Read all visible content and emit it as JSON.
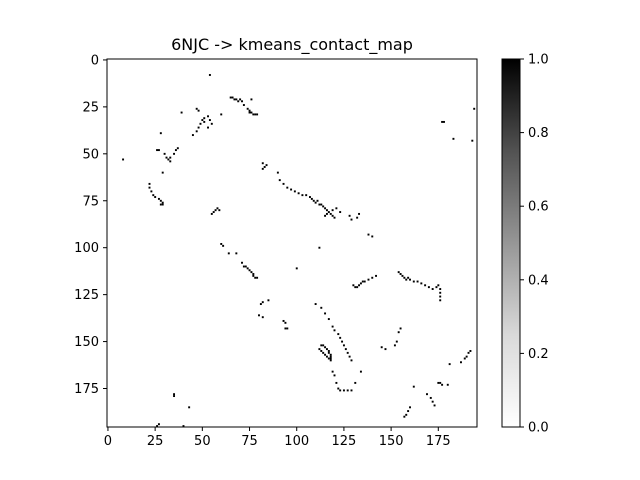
{
  "chart_data": {
    "type": "heatmap",
    "title": "6NJC -> kmeans_contact_map",
    "xlabel": "",
    "ylabel": "",
    "size": 196,
    "xlim": [
      0,
      196
    ],
    "ylim": [
      196,
      0
    ],
    "x_ticks": [
      0,
      25,
      50,
      75,
      100,
      125,
      150,
      175
    ],
    "y_ticks": [
      0,
      25,
      50,
      75,
      100,
      125,
      150,
      175
    ],
    "colorbar": {
      "min": 0.0,
      "max": 1.0,
      "ticks": [
        "0.0",
        "0.2",
        "0.4",
        "0.6",
        "0.8",
        "1.0"
      ],
      "colormap": "Greys"
    },
    "grid": false,
    "contacts": [
      [
        8,
        53
      ],
      [
        22,
        66
      ],
      [
        22,
        68
      ],
      [
        23,
        70
      ],
      [
        24,
        72
      ],
      [
        25,
        73
      ],
      [
        27,
        74
      ],
      [
        28,
        75
      ],
      [
        29,
        76
      ],
      [
        28,
        77
      ],
      [
        29,
        77
      ],
      [
        26,
        48
      ],
      [
        27,
        48
      ],
      [
        30,
        50
      ],
      [
        31,
        52
      ],
      [
        32,
        53
      ],
      [
        33,
        52
      ],
      [
        33,
        54
      ],
      [
        35,
        50
      ],
      [
        36,
        48
      ],
      [
        37,
        47
      ],
      [
        28,
        39
      ],
      [
        29,
        60
      ],
      [
        39,
        28
      ],
      [
        45,
        40
      ],
      [
        47,
        38
      ],
      [
        48,
        36
      ],
      [
        49,
        34
      ],
      [
        50,
        32
      ],
      [
        51,
        31
      ],
      [
        51,
        33
      ],
      [
        53,
        30
      ],
      [
        54,
        32
      ],
      [
        55,
        34
      ],
      [
        53,
        36
      ],
      [
        47,
        26
      ],
      [
        48,
        27
      ],
      [
        54,
        8
      ],
      [
        60,
        29
      ],
      [
        65,
        20
      ],
      [
        66,
        20
      ],
      [
        67,
        21
      ],
      [
        68,
        21
      ],
      [
        69,
        22
      ],
      [
        70,
        21
      ],
      [
        71,
        22
      ],
      [
        72,
        24
      ],
      [
        74,
        26
      ],
      [
        75,
        27
      ],
      [
        75,
        28
      ],
      [
        76,
        28
      ],
      [
        77,
        29
      ],
      [
        78,
        29
      ],
      [
        79,
        29
      ],
      [
        76,
        21
      ],
      [
        55,
        82
      ],
      [
        56,
        81
      ],
      [
        57,
        80
      ],
      [
        58,
        79
      ],
      [
        59,
        80
      ],
      [
        82,
        58
      ],
      [
        83,
        57
      ],
      [
        84,
        56
      ],
      [
        82,
        55
      ],
      [
        60,
        98
      ],
      [
        61,
        99
      ],
      [
        64,
        103
      ],
      [
        68,
        103
      ],
      [
        71,
        108
      ],
      [
        72,
        110
      ],
      [
        73,
        110
      ],
      [
        74,
        111
      ],
      [
        75,
        112
      ],
      [
        76,
        113
      ],
      [
        77,
        114
      ],
      [
        77,
        115
      ],
      [
        78,
        116
      ],
      [
        79,
        116
      ],
      [
        81,
        130
      ],
      [
        82,
        129
      ],
      [
        80,
        136
      ],
      [
        82,
        137
      ],
      [
        85,
        128
      ],
      [
        90,
        60
      ],
      [
        91,
        64
      ],
      [
        93,
        66
      ],
      [
        95,
        68
      ],
      [
        97,
        69
      ],
      [
        99,
        70
      ],
      [
        101,
        71
      ],
      [
        103,
        72
      ],
      [
        105,
        72
      ],
      [
        107,
        73
      ],
      [
        108,
        74
      ],
      [
        109,
        75
      ],
      [
        110,
        76
      ],
      [
        111,
        75
      ],
      [
        112,
        77
      ],
      [
        113,
        77
      ],
      [
        114,
        78
      ],
      [
        115,
        79
      ],
      [
        116,
        80
      ],
      [
        117,
        81
      ],
      [
        118,
        82
      ],
      [
        119,
        83
      ],
      [
        120,
        84
      ],
      [
        93,
        139
      ],
      [
        94,
        140
      ],
      [
        95,
        143
      ],
      [
        94,
        143
      ],
      [
        100,
        111
      ],
      [
        112,
        100
      ],
      [
        115,
        83
      ],
      [
        116,
        82
      ],
      [
        119,
        80
      ],
      [
        121,
        79
      ],
      [
        123,
        81
      ],
      [
        128,
        83
      ],
      [
        129,
        85
      ],
      [
        132,
        84
      ],
      [
        133,
        82
      ],
      [
        138,
        93
      ],
      [
        140,
        94
      ],
      [
        110,
        130
      ],
      [
        113,
        132
      ],
      [
        115,
        135
      ],
      [
        117,
        138
      ],
      [
        119,
        142
      ],
      [
        120,
        144
      ],
      [
        122,
        146
      ],
      [
        123,
        148
      ],
      [
        124,
        150
      ],
      [
        125,
        152
      ],
      [
        126,
        154
      ],
      [
        127,
        156
      ],
      [
        128,
        158
      ],
      [
        129,
        160
      ],
      [
        112,
        154
      ],
      [
        113,
        155
      ],
      [
        114,
        156
      ],
      [
        115,
        157
      ],
      [
        116,
        158
      ],
      [
        117,
        159
      ],
      [
        118,
        160
      ],
      [
        130,
        120
      ],
      [
        131,
        121
      ],
      [
        132,
        121
      ],
      [
        133,
        120
      ],
      [
        134,
        119
      ],
      [
        135,
        118
      ],
      [
        136,
        118
      ],
      [
        138,
        117
      ],
      [
        140,
        116
      ],
      [
        142,
        115
      ],
      [
        154,
        113
      ],
      [
        155,
        114
      ],
      [
        156,
        115
      ],
      [
        157,
        116
      ],
      [
        158,
        117
      ],
      [
        159,
        116
      ],
      [
        160,
        117
      ],
      [
        162,
        118
      ],
      [
        164,
        118
      ],
      [
        166,
        119
      ],
      [
        168,
        120
      ],
      [
        170,
        121
      ],
      [
        172,
        122
      ],
      [
        174,
        121
      ],
      [
        175,
        120
      ],
      [
        176,
        122
      ],
      [
        176,
        124
      ],
      [
        176,
        126
      ],
      [
        176,
        128
      ],
      [
        113,
        152
      ],
      [
        114,
        152
      ],
      [
        115,
        153
      ],
      [
        116,
        154
      ],
      [
        117,
        155
      ],
      [
        117,
        156
      ],
      [
        118,
        157
      ],
      [
        118,
        158
      ],
      [
        118,
        159
      ],
      [
        119,
        166
      ],
      [
        120,
        168
      ],
      [
        121,
        172
      ],
      [
        122,
        175
      ],
      [
        123,
        176
      ],
      [
        125,
        176
      ],
      [
        127,
        176
      ],
      [
        129,
        176
      ],
      [
        131,
        172
      ],
      [
        134,
        166
      ],
      [
        145,
        153
      ],
      [
        147,
        154
      ],
      [
        152,
        152
      ],
      [
        153,
        150
      ],
      [
        154,
        145
      ],
      [
        155,
        143
      ],
      [
        157,
        190
      ],
      [
        158,
        189
      ],
      [
        159,
        187
      ],
      [
        160,
        185
      ],
      [
        162,
        174
      ],
      [
        169,
        178
      ],
      [
        171,
        180
      ],
      [
        172,
        182
      ],
      [
        173,
        184
      ],
      [
        175,
        172
      ],
      [
        176,
        172
      ],
      [
        177,
        173
      ],
      [
        180,
        173
      ],
      [
        181,
        162
      ],
      [
        187,
        161
      ],
      [
        189,
        159
      ],
      [
        190,
        158
      ],
      [
        191,
        156
      ],
      [
        192,
        155
      ],
      [
        177,
        33
      ],
      [
        178,
        33
      ],
      [
        183,
        42
      ],
      [
        193,
        43
      ],
      [
        194,
        26
      ],
      [
        43,
        185
      ],
      [
        35,
        178
      ],
      [
        35,
        179
      ],
      [
        40,
        195
      ],
      [
        26,
        195
      ],
      [
        27,
        194
      ]
    ]
  }
}
